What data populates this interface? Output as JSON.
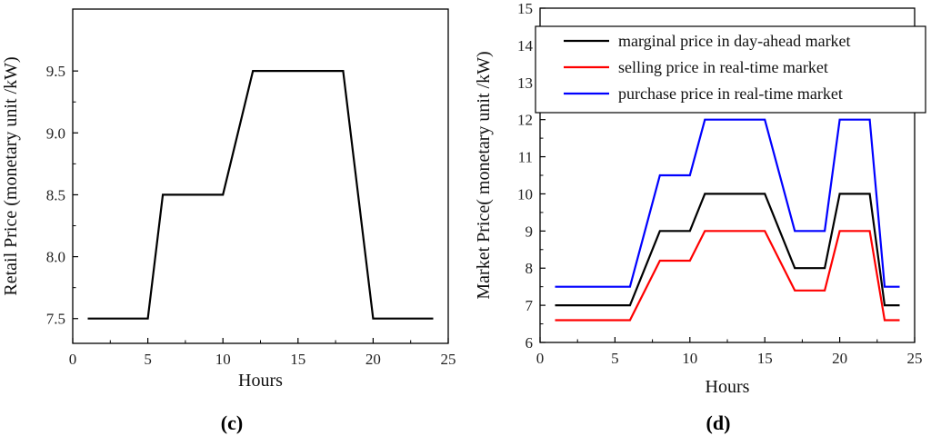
{
  "chart_data": [
    {
      "type": "line",
      "panel_label": "(c)",
      "xlabel": "Hours",
      "ylabel": "Retail Price (monetary unit /kW)",
      "xlim": [
        0,
        25
      ],
      "ylim": [
        7.3,
        10.0
      ],
      "xticks": [
        0,
        5,
        10,
        15,
        20,
        25
      ],
      "yticks": [
        7.5,
        8.0,
        8.5,
        9.0,
        9.5
      ],
      "ytick_labels": [
        "7.5",
        "8.0",
        "8.5",
        "9.0",
        "9.5"
      ],
      "legend": "none",
      "grid": false,
      "series": [
        {
          "color": "#000000",
          "x": [
            1,
            5,
            6,
            10,
            12,
            18,
            20,
            24
          ],
          "y": [
            7.5,
            7.5,
            8.5,
            8.5,
            9.5,
            9.5,
            7.5,
            7.5
          ]
        }
      ]
    },
    {
      "type": "line",
      "panel_label": "(d)",
      "xlabel": "Hours",
      "ylabel": "Market Price( monetary unit /kW)",
      "xlim": [
        0,
        25
      ],
      "ylim": [
        6,
        15
      ],
      "xticks": [
        0,
        5,
        10,
        15,
        20,
        25
      ],
      "yticks": [
        6,
        7,
        8,
        9,
        10,
        11,
        12,
        13,
        14,
        15
      ],
      "ytick_labels": [
        "6",
        "7",
        "8",
        "9",
        "10",
        "11",
        "12",
        "13",
        "14",
        "15"
      ],
      "legend": "top-right",
      "grid": false,
      "series": [
        {
          "name": "marginal price in day-ahead market",
          "color": "#000000",
          "x": [
            1,
            6,
            8,
            10,
            11,
            15,
            17,
            19,
            20,
            22,
            23,
            24
          ],
          "y": [
            7,
            7,
            9,
            9,
            10,
            10,
            8,
            8,
            10,
            10,
            7,
            7
          ]
        },
        {
          "name": "selling price in real-time market",
          "color": "#ff0000",
          "x": [
            1,
            6,
            8,
            10,
            11,
            15,
            17,
            19,
            20,
            22,
            23,
            24
          ],
          "y": [
            6.6,
            6.6,
            8.2,
            8.2,
            9,
            9,
            7.4,
            7.4,
            9,
            9,
            6.6,
            6.6
          ]
        },
        {
          "name": "purchase price in real-time market",
          "color": "#0000ff",
          "x": [
            1,
            6,
            8,
            10,
            11,
            15,
            17,
            19,
            20,
            22,
            23,
            24
          ],
          "y": [
            7.5,
            7.5,
            10.5,
            10.5,
            12,
            12,
            9,
            9,
            12,
            12,
            7.5,
            7.5
          ]
        }
      ]
    }
  ]
}
